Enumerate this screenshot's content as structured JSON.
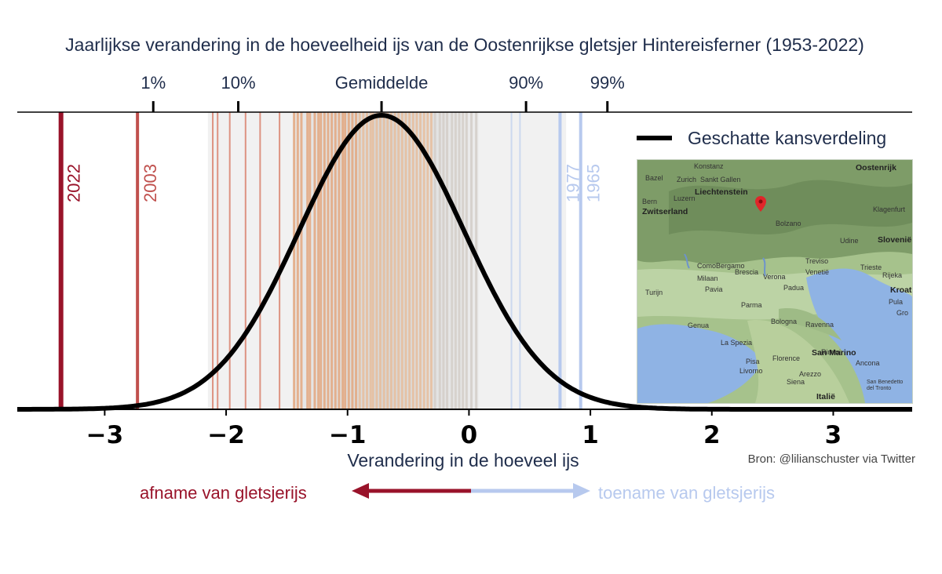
{
  "title": "Jaarlijkse verandering in de hoeveelheid ijs van de Oostenrijkse gletsjer Hintereisferner (1953-2022)",
  "source": "Bron: @lilianschuster via Twitter",
  "arrows": {
    "left_label": "afname van gletsjerijs",
    "right_label": "toename van gletsjerijs",
    "left_color": "#99132a",
    "right_color": "#b7c9ee"
  },
  "map": {
    "labels": [
      "Konstanz",
      "Oostenrijk",
      "Zurich",
      "Sankt Gallen",
      "Bazel",
      "Liechtenstein",
      "Bern",
      "Luzern",
      "Zwitserland",
      "Klagenfurt",
      "Bolzano",
      "Slovenië",
      "Udine",
      "Treviso",
      "Trieste",
      "Como",
      "Bergamo",
      "Brescia",
      "Verona",
      "Venetië",
      "Rijeka",
      "Milaan",
      "Padua",
      "Turijn",
      "Pavia",
      "Parma",
      "Kroatië",
      "Pula",
      "Genua",
      "Bologna",
      "Ravenna",
      "La Spezia",
      "Rimini",
      "San Marino",
      "Florence",
      "Ancona",
      "Pisa",
      "Livorno",
      "Arezzo",
      "Siena",
      "Italië",
      "San Benedetto del Tronto",
      "Gro"
    ],
    "marker": "location-pin-icon"
  },
  "chart_data": {
    "type": "line",
    "title": "Jaarlijkse verandering in de hoeveelheid ijs van de Oostenrijkse gletsjer Hintereisferner (1953-2022)",
    "xlabel": "Verandering in de hoeveel ijs",
    "ylabel": "",
    "xlim": [
      -3.72,
      3.65
    ],
    "xticks": [
      -3,
      -2,
      -1,
      0,
      1,
      2,
      3
    ],
    "xtick_labels": [
      "−3",
      "−2",
      "−1",
      "0",
      "1",
      "2",
      "3"
    ],
    "series": [
      {
        "name": "Geschatte kansverdeling",
        "mean": -0.72,
        "sd": 0.68,
        "color": "#000000"
      }
    ],
    "percentiles": [
      {
        "label": "1%",
        "x": -2.6
      },
      {
        "label": "10%",
        "x": -1.9
      },
      {
        "label": "Gemiddelde",
        "x": -0.72
      },
      {
        "label": "90%",
        "x": 0.47
      },
      {
        "label": "99%",
        "x": 1.14
      }
    ],
    "annual_values": [
      -3.36,
      -2.73,
      -2.11,
      -2.07,
      -1.97,
      -1.84,
      -1.72,
      -1.56,
      -1.44,
      -1.41,
      -1.38,
      -1.33,
      -1.31,
      -1.27,
      -1.24,
      -1.22,
      -1.19,
      -1.16,
      -1.13,
      -1.1,
      -1.07,
      -1.04,
      -1.02,
      -0.99,
      -0.96,
      -0.93,
      -0.9,
      -0.87,
      -0.84,
      -0.81,
      -0.79,
      -0.76,
      -0.73,
      -0.7,
      -0.67,
      -0.64,
      -0.61,
      -0.58,
      -0.55,
      -0.52,
      -0.49,
      -0.46,
      -0.43,
      -0.4,
      -0.37,
      -0.34,
      -0.31,
      -0.28,
      -0.24,
      -0.21,
      -0.18,
      -0.14,
      -0.11,
      -0.08,
      -0.05,
      -0.02,
      0.02,
      0.06,
      0.35,
      0.42,
      0.75,
      0.92
    ],
    "labeled_years": [
      {
        "year": "2022",
        "x": -3.36,
        "color": "#99132a"
      },
      {
        "year": "2003",
        "x": -2.73,
        "color": "#c0504d"
      },
      {
        "year": "1977",
        "x": 0.75,
        "color": "#b7c9ee"
      },
      {
        "year": "1965",
        "x": 0.92,
        "color": "#b7c9ee"
      }
    ],
    "legend": "top-right",
    "grid": false
  }
}
